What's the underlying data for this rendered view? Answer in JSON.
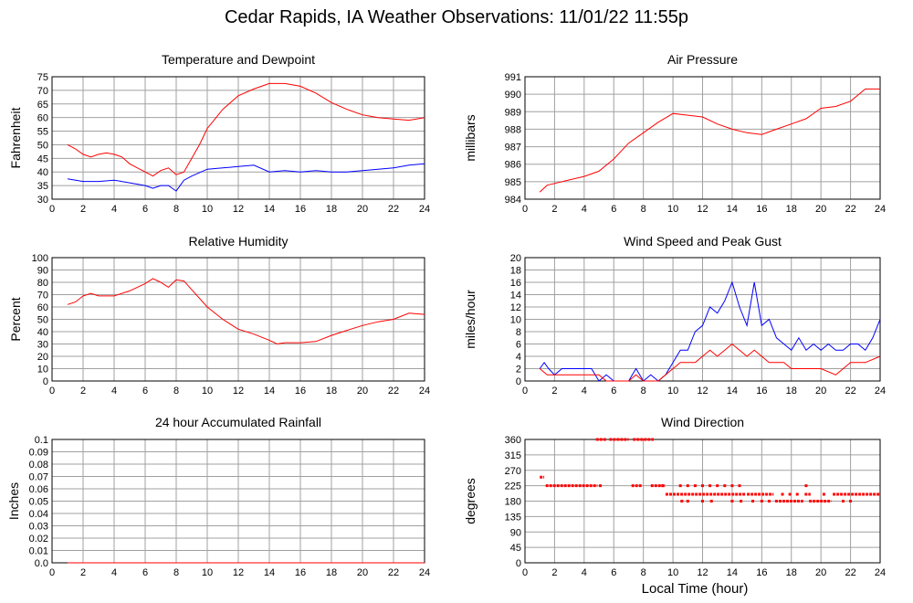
{
  "page_title": "Cedar Rapids, IA Weather Observations: 11/01/22 11:55p",
  "x_axis_label": "Local Time (hour)",
  "colors": {
    "red": "#ff0000",
    "blue": "#0000ff",
    "grid": "#a0a0a0"
  },
  "chart_data": [
    {
      "type": "line",
      "title": "Temperature and Dewpoint",
      "ylabel": "Fahrenheit",
      "xlim": [
        0,
        24
      ],
      "ylim": [
        30,
        75
      ],
      "yticks": [
        30,
        35,
        40,
        45,
        50,
        55,
        60,
        65,
        70,
        75
      ],
      "xticks": [
        2,
        4,
        6,
        8,
        10,
        12,
        14,
        16,
        18,
        20,
        22,
        24
      ],
      "x_tick_labels": [
        "0",
        "2",
        "4",
        "6",
        "8",
        "10",
        "12",
        "14",
        "16",
        "18",
        "20",
        "22",
        "24"
      ],
      "grid": true,
      "series": [
        {
          "color": "#ff0000",
          "x": [
            1,
            1.5,
            2,
            2.5,
            3,
            3.5,
            4,
            4.5,
            5,
            5.5,
            6,
            6.5,
            7,
            7.5,
            8,
            8.5,
            9,
            9.5,
            10,
            11,
            12,
            13,
            14,
            15,
            16,
            17,
            18,
            19,
            20,
            21,
            22,
            23,
            24
          ],
          "y": [
            50,
            48.5,
            46.5,
            45.5,
            46.5,
            47,
            46.5,
            45.5,
            43,
            41.5,
            40,
            38.5,
            40.5,
            41.5,
            39,
            40,
            45,
            50,
            56,
            63,
            68,
            70.5,
            72.5,
            72.5,
            71.5,
            69,
            65.5,
            63,
            61,
            60,
            59.5,
            59,
            60
          ]
        },
        {
          "color": "#0000ff",
          "x": [
            1,
            2,
            3,
            4,
            5,
            6,
            6.5,
            7,
            7.5,
            8,
            8.5,
            9,
            10,
            11,
            12,
            13,
            14,
            15,
            16,
            17,
            18,
            19,
            20,
            21,
            22,
            23,
            24
          ],
          "y": [
            37.5,
            36.5,
            36.5,
            37,
            36,
            35,
            34,
            35,
            35,
            33,
            37,
            38.5,
            41,
            41.5,
            42,
            42.5,
            40,
            40.5,
            40,
            40.5,
            40,
            40,
            40.5,
            41,
            41.5,
            42.5,
            43
          ]
        }
      ]
    },
    {
      "type": "line",
      "title": "Air Pressure",
      "ylabel": "millibars",
      "xlim": [
        0,
        24
      ],
      "ylim": [
        984,
        991
      ],
      "yticks": [
        984,
        985,
        986,
        987,
        988,
        989,
        990,
        991
      ],
      "xticks": [
        2,
        4,
        6,
        8,
        10,
        12,
        14,
        16,
        18,
        20,
        22,
        24
      ],
      "x_tick_labels": [
        "0",
        "2",
        "4",
        "6",
        "8",
        "10",
        "12",
        "14",
        "16",
        "18",
        "20",
        "22",
        "24"
      ],
      "grid": true,
      "series": [
        {
          "color": "#ff0000",
          "x": [
            1,
            1.5,
            2,
            3,
            4,
            5,
            6,
            7,
            8,
            9,
            10,
            11,
            12,
            13,
            14,
            15,
            16,
            17,
            18,
            19,
            20,
            21,
            22,
            23,
            24
          ],
          "y": [
            984.4,
            984.8,
            984.9,
            985.1,
            985.3,
            985.6,
            986.3,
            987.2,
            987.8,
            988.4,
            988.9,
            988.8,
            988.7,
            988.3,
            988,
            987.8,
            987.7,
            988,
            988.3,
            988.6,
            989.2,
            989.3,
            989.6,
            990.3,
            990.3
          ]
        }
      ]
    },
    {
      "type": "line",
      "title": "Relative Humidity",
      "ylabel": "Percent",
      "xlim": [
        0,
        24
      ],
      "ylim": [
        0,
        100
      ],
      "yticks": [
        0,
        10,
        20,
        30,
        40,
        50,
        60,
        70,
        80,
        90,
        100
      ],
      "xticks": [
        2,
        4,
        6,
        8,
        10,
        12,
        14,
        16,
        18,
        20,
        22,
        24
      ],
      "x_tick_labels": [
        "0",
        "2",
        "4",
        "6",
        "8",
        "10",
        "12",
        "14",
        "16",
        "18",
        "20",
        "22",
        "24"
      ],
      "grid": true,
      "series": [
        {
          "color": "#ff0000",
          "x": [
            1,
            1.5,
            2,
            2.5,
            3,
            4,
            5,
            6,
            6.5,
            7,
            7.5,
            8,
            8.5,
            9,
            10,
            11,
            12,
            13,
            14,
            14.5,
            15,
            16,
            17,
            18,
            19,
            20,
            21,
            22,
            23,
            24
          ],
          "y": [
            62,
            64,
            69,
            71,
            69,
            69,
            73,
            79,
            83,
            80,
            76,
            82,
            81,
            74,
            60,
            50,
            42,
            38,
            33,
            30,
            31,
            31,
            32,
            37,
            41,
            45,
            48,
            50,
            55,
            54
          ]
        }
      ]
    },
    {
      "type": "line",
      "title": "Wind Speed and Peak Gust",
      "ylabel": "miles/hour",
      "xlim": [
        0,
        24
      ],
      "ylim": [
        0,
        20
      ],
      "yticks": [
        0,
        2,
        4,
        6,
        8,
        10,
        12,
        14,
        16,
        18,
        20
      ],
      "xticks": [
        2,
        4,
        6,
        8,
        10,
        12,
        14,
        16,
        18,
        20,
        22,
        24
      ],
      "x_tick_labels": [
        "0",
        "2",
        "4",
        "6",
        "8",
        "10",
        "12",
        "14",
        "16",
        "18",
        "20",
        "22",
        "24"
      ],
      "grid": true,
      "series": [
        {
          "color": "#0000ff",
          "x": [
            1,
            1.3,
            1.6,
            2,
            2.5,
            3,
            3.5,
            4,
            4.5,
            5,
            5.5,
            6,
            6.5,
            7,
            7.5,
            8,
            8.5,
            9,
            9.5,
            10,
            10.5,
            11,
            11.5,
            12,
            12.5,
            13,
            13.5,
            14,
            14.5,
            15,
            15.5,
            16,
            16.5,
            17,
            17.5,
            18,
            18.5,
            19,
            19.5,
            20,
            20.5,
            21,
            21.5,
            22,
            22.5,
            23,
            23.5,
            24
          ],
          "y": [
            2,
            3,
            2,
            1,
            2,
            2,
            2,
            2,
            2,
            0,
            1,
            0,
            0,
            0,
            2,
            0,
            1,
            0,
            1,
            3,
            5,
            5,
            8,
            9,
            12,
            11,
            13,
            16,
            12,
            9,
            16,
            9,
            10,
            7,
            6,
            5,
            7,
            5,
            6,
            5,
            6,
            5,
            5,
            6,
            6,
            5,
            7,
            10
          ]
        },
        {
          "color": "#ff0000",
          "x": [
            1,
            1.5,
            2,
            2.5,
            3,
            4,
            5,
            5.5,
            6,
            7,
            7.5,
            8,
            9,
            10,
            10.5,
            11,
            11.5,
            12,
            12.5,
            13,
            13.5,
            14,
            14.5,
            15,
            15.5,
            16,
            16.5,
            17,
            17.5,
            18,
            19,
            20,
            21,
            22,
            23,
            24
          ],
          "y": [
            2,
            1,
            1,
            1,
            1,
            1,
            1,
            0,
            0,
            0,
            1,
            0,
            0,
            2,
            3,
            3,
            3,
            4,
            5,
            4,
            5,
            6,
            5,
            4,
            5,
            4,
            3,
            3,
            3,
            2,
            2,
            2,
            1,
            3,
            3,
            4
          ]
        }
      ]
    },
    {
      "type": "line",
      "title": "24 hour Accumulated Rainfall",
      "ylabel": "Inches",
      "xlim": [
        0,
        24
      ],
      "ylim": [
        0,
        0.1
      ],
      "yticks": [
        0.0,
        0.01,
        0.02,
        0.03,
        0.04,
        0.05,
        0.06,
        0.07,
        0.08,
        0.09,
        0.1
      ],
      "y_tick_labels": [
        "0.0",
        "0.01",
        "0.02",
        "0.03",
        "0.04",
        "0.05",
        "0.06",
        "0.07",
        "0.08",
        "0.09",
        "0.1"
      ],
      "xticks": [
        2,
        4,
        6,
        8,
        10,
        12,
        14,
        16,
        18,
        20,
        22,
        24
      ],
      "x_tick_labels": [
        "0",
        "2",
        "4",
        "6",
        "8",
        "10",
        "12",
        "14",
        "16",
        "18",
        "20",
        "22",
        "24"
      ],
      "grid": true,
      "series": [
        {
          "color": "#ff0000",
          "x": [
            1,
            24
          ],
          "y": [
            0,
            0
          ]
        }
      ]
    },
    {
      "type": "scatter",
      "title": "Wind Direction",
      "ylabel": "degrees",
      "xlabel": "Local Time (hour)",
      "xlim": [
        0,
        24
      ],
      "ylim": [
        0,
        360
      ],
      "yticks": [
        0,
        45,
        90,
        135,
        180,
        225,
        270,
        315,
        360
      ],
      "xticks": [
        2,
        4,
        6,
        8,
        10,
        12,
        14,
        16,
        18,
        20,
        22,
        24
      ],
      "x_tick_labels": [
        "0",
        "2",
        "4",
        "6",
        "8",
        "10",
        "12",
        "14",
        "16",
        "18",
        "20",
        "22",
        "24"
      ],
      "grid": true,
      "series": [
        {
          "color": "#ff0000",
          "segments": [
            {
              "x0": 1.0,
              "x1": 1.3,
              "y": 250
            },
            {
              "x0": 1.4,
              "x1": 4.9,
              "y": 225
            },
            {
              "x0": 5.0,
              "x1": 5.2,
              "y": 225
            },
            {
              "x0": 4.8,
              "x1": 5.5,
              "y": 360
            },
            {
              "x0": 5.7,
              "x1": 7.0,
              "y": 360
            },
            {
              "x0": 7.3,
              "x1": 8.7,
              "y": 360
            },
            {
              "x0": 7.2,
              "x1": 7.9,
              "y": 225
            },
            {
              "x0": 8.5,
              "x1": 9.5,
              "y": 225
            },
            {
              "x0": 9.5,
              "x1": 10.5,
              "y": 200
            },
            {
              "x0": 10.5,
              "x1": 14.9,
              "y": 200
            },
            {
              "x0": 15.0,
              "x1": 16.8,
              "y": 200
            },
            {
              "x0": 16.9,
              "x1": 18.8,
              "y": 180
            },
            {
              "x0": 18.9,
              "x1": 19.3,
              "y": 200
            },
            {
              "x0": 19.2,
              "x1": 20.7,
              "y": 180
            },
            {
              "x0": 20.8,
              "x1": 24.0,
              "y": 200
            }
          ],
          "points": [
            {
              "x": 10.5,
              "y": 225
            },
            {
              "x": 11.0,
              "y": 225
            },
            {
              "x": 11.5,
              "y": 225
            },
            {
              "x": 12.0,
              "y": 225
            },
            {
              "x": 12.5,
              "y": 225
            },
            {
              "x": 13.0,
              "y": 225
            },
            {
              "x": 13.5,
              "y": 225
            },
            {
              "x": 14.0,
              "y": 225
            },
            {
              "x": 14.5,
              "y": 225
            },
            {
              "x": 10.6,
              "y": 180
            },
            {
              "x": 11.0,
              "y": 180
            },
            {
              "x": 12.0,
              "y": 180
            },
            {
              "x": 12.6,
              "y": 180
            },
            {
              "x": 14.0,
              "y": 180
            },
            {
              "x": 14.6,
              "y": 180
            },
            {
              "x": 15.4,
              "y": 180
            },
            {
              "x": 16.0,
              "y": 180
            },
            {
              "x": 16.5,
              "y": 180
            },
            {
              "x": 17.4,
              "y": 200
            },
            {
              "x": 17.9,
              "y": 200
            },
            {
              "x": 18.4,
              "y": 200
            },
            {
              "x": 20.2,
              "y": 200
            },
            {
              "x": 21.5,
              "y": 180
            },
            {
              "x": 22.0,
              "y": 180
            },
            {
              "x": 19.0,
              "y": 225
            },
            {
              "x": 9.3,
              "y": 225
            }
          ]
        }
      ]
    }
  ]
}
